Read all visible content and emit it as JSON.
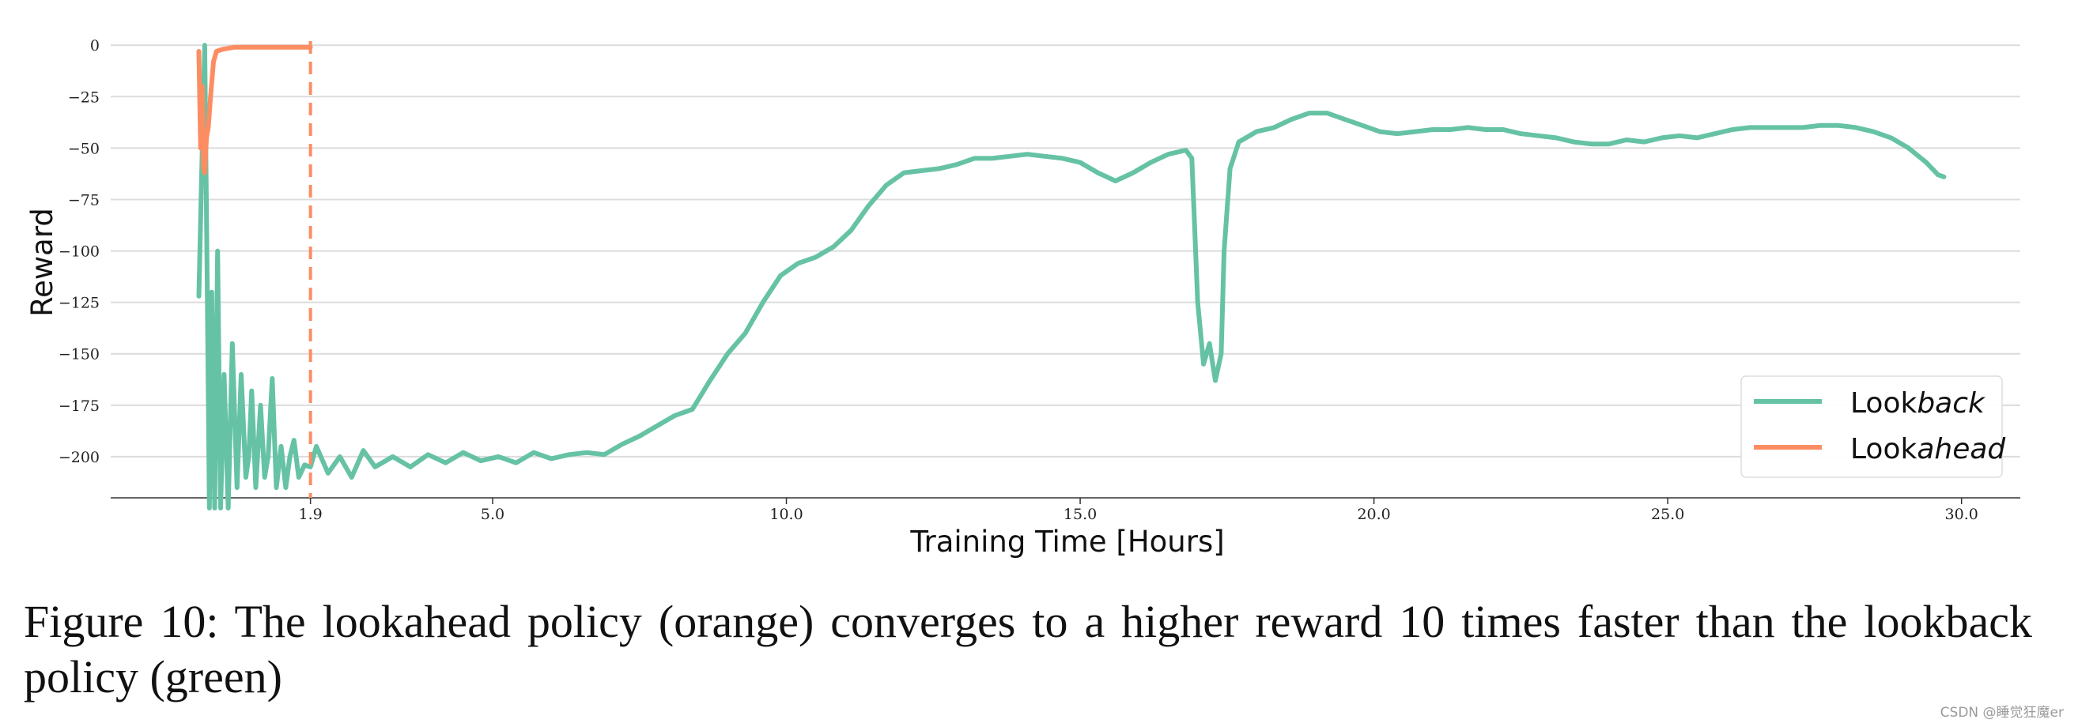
{
  "chart_data": {
    "type": "line",
    "xlabel": "Training Time [Hours]",
    "ylabel": "Reward",
    "xlim": [
      -1.5,
      31.0
    ],
    "ylim": [
      -220,
      2
    ],
    "x_ticks": [
      {
        "value": 1.9,
        "label": "1.9"
      },
      {
        "value": 5.0,
        "label": "5.0"
      },
      {
        "value": 10.0,
        "label": "10.0"
      },
      {
        "value": 15.0,
        "label": "15.0"
      },
      {
        "value": 20.0,
        "label": "20.0"
      },
      {
        "value": 25.0,
        "label": "25.0"
      },
      {
        "value": 30.0,
        "label": "30.0"
      }
    ],
    "y_ticks": [
      {
        "value": 0,
        "label": "0"
      },
      {
        "value": -25,
        "label": "−25"
      },
      {
        "value": -50,
        "label": "−50"
      },
      {
        "value": -75,
        "label": "−75"
      },
      {
        "value": -100,
        "label": "−100"
      },
      {
        "value": -125,
        "label": "−125"
      },
      {
        "value": -150,
        "label": "−150"
      },
      {
        "value": -175,
        "label": "−175"
      },
      {
        "value": -200,
        "label": "−200"
      }
    ],
    "grid": "horizontal",
    "legend_position": "bottom-right",
    "vline": {
      "x": 1.9,
      "color": "#fc8d62",
      "style": "dashed"
    },
    "series": [
      {
        "name_plain": "Look",
        "name_italic": "back",
        "color": "#66c2a5",
        "points": [
          [
            0.0,
            -122
          ],
          [
            0.05,
            -60
          ],
          [
            0.1,
            0
          ],
          [
            0.14,
            -110
          ],
          [
            0.18,
            -225
          ],
          [
            0.22,
            -120
          ],
          [
            0.27,
            -225
          ],
          [
            0.32,
            -100
          ],
          [
            0.37,
            -225
          ],
          [
            0.43,
            -160
          ],
          [
            0.5,
            -225
          ],
          [
            0.57,
            -145
          ],
          [
            0.65,
            -215
          ],
          [
            0.72,
            -160
          ],
          [
            0.8,
            -210
          ],
          [
            0.85,
            -200
          ],
          [
            0.9,
            -168
          ],
          [
            0.97,
            -215
          ],
          [
            1.05,
            -175
          ],
          [
            1.12,
            -210
          ],
          [
            1.18,
            -200
          ],
          [
            1.25,
            -162
          ],
          [
            1.32,
            -215
          ],
          [
            1.4,
            -195
          ],
          [
            1.48,
            -215
          ],
          [
            1.55,
            -200
          ],
          [
            1.62,
            -192
          ],
          [
            1.7,
            -210
          ],
          [
            1.8,
            -204
          ],
          [
            1.9,
            -205
          ],
          [
            2.0,
            -195
          ],
          [
            2.2,
            -208
          ],
          [
            2.4,
            -200
          ],
          [
            2.6,
            -210
          ],
          [
            2.8,
            -197
          ],
          [
            3.0,
            -205
          ],
          [
            3.3,
            -200
          ],
          [
            3.6,
            -205
          ],
          [
            3.9,
            -199
          ],
          [
            4.2,
            -203
          ],
          [
            4.5,
            -198
          ],
          [
            4.8,
            -202
          ],
          [
            5.1,
            -200
          ],
          [
            5.4,
            -203
          ],
          [
            5.7,
            -198
          ],
          [
            6.0,
            -201
          ],
          [
            6.3,
            -199
          ],
          [
            6.6,
            -198
          ],
          [
            6.9,
            -199
          ],
          [
            7.2,
            -194
          ],
          [
            7.5,
            -190
          ],
          [
            7.8,
            -185
          ],
          [
            8.1,
            -180
          ],
          [
            8.4,
            -177
          ],
          [
            8.7,
            -163
          ],
          [
            9.0,
            -150
          ],
          [
            9.3,
            -140
          ],
          [
            9.6,
            -125
          ],
          [
            9.9,
            -112
          ],
          [
            10.2,
            -106
          ],
          [
            10.5,
            -103
          ],
          [
            10.8,
            -98
          ],
          [
            11.1,
            -90
          ],
          [
            11.4,
            -78
          ],
          [
            11.7,
            -68
          ],
          [
            12.0,
            -62
          ],
          [
            12.3,
            -61
          ],
          [
            12.6,
            -60
          ],
          [
            12.9,
            -58
          ],
          [
            13.2,
            -55
          ],
          [
            13.5,
            -55
          ],
          [
            13.8,
            -54
          ],
          [
            14.1,
            -53
          ],
          [
            14.4,
            -54
          ],
          [
            14.7,
            -55
          ],
          [
            15.0,
            -57
          ],
          [
            15.3,
            -62
          ],
          [
            15.6,
            -66
          ],
          [
            15.9,
            -62
          ],
          [
            16.2,
            -57
          ],
          [
            16.5,
            -53
          ],
          [
            16.8,
            -51
          ],
          [
            16.9,
            -55
          ],
          [
            17.0,
            -125
          ],
          [
            17.1,
            -155
          ],
          [
            17.2,
            -145
          ],
          [
            17.3,
            -163
          ],
          [
            17.4,
            -150
          ],
          [
            17.45,
            -100
          ],
          [
            17.55,
            -60
          ],
          [
            17.7,
            -47
          ],
          [
            18.0,
            -42
          ],
          [
            18.3,
            -40
          ],
          [
            18.6,
            -36
          ],
          [
            18.9,
            -33
          ],
          [
            19.2,
            -33
          ],
          [
            19.5,
            -36
          ],
          [
            19.8,
            -39
          ],
          [
            20.1,
            -42
          ],
          [
            20.4,
            -43
          ],
          [
            20.7,
            -42
          ],
          [
            21.0,
            -41
          ],
          [
            21.3,
            -41
          ],
          [
            21.6,
            -40
          ],
          [
            21.9,
            -41
          ],
          [
            22.2,
            -41
          ],
          [
            22.5,
            -43
          ],
          [
            22.8,
            -44
          ],
          [
            23.1,
            -45
          ],
          [
            23.4,
            -47
          ],
          [
            23.7,
            -48
          ],
          [
            24.0,
            -48
          ],
          [
            24.3,
            -46
          ],
          [
            24.6,
            -47
          ],
          [
            24.9,
            -45
          ],
          [
            25.2,
            -44
          ],
          [
            25.5,
            -45
          ],
          [
            25.8,
            -43
          ],
          [
            26.1,
            -41
          ],
          [
            26.4,
            -40
          ],
          [
            26.7,
            -40
          ],
          [
            27.0,
            -40
          ],
          [
            27.3,
            -40
          ],
          [
            27.6,
            -39
          ],
          [
            27.9,
            -39
          ],
          [
            28.2,
            -40
          ],
          [
            28.5,
            -42
          ],
          [
            28.8,
            -45
          ],
          [
            29.1,
            -50
          ],
          [
            29.4,
            -57
          ],
          [
            29.6,
            -63
          ],
          [
            29.7,
            -64
          ]
        ]
      },
      {
        "name_plain": "Look",
        "name_italic": "ahead",
        "color": "#fc8d62",
        "points": [
          [
            0.0,
            -3
          ],
          [
            0.03,
            -50
          ],
          [
            0.06,
            -20
          ],
          [
            0.08,
            -60
          ],
          [
            0.1,
            -62
          ],
          [
            0.13,
            -45
          ],
          [
            0.16,
            -40
          ],
          [
            0.2,
            -25
          ],
          [
            0.25,
            -8
          ],
          [
            0.3,
            -3
          ],
          [
            0.4,
            -2
          ],
          [
            0.6,
            -1
          ],
          [
            0.9,
            -1
          ],
          [
            1.2,
            -1
          ],
          [
            1.5,
            -1
          ],
          [
            1.9,
            -1
          ]
        ]
      }
    ]
  },
  "caption": {
    "text": "Figure 10: The lookahead policy (orange) converges to a higher reward 10 times faster than the lookback policy (green)"
  },
  "watermark": "CSDN @睡觉狂魔er"
}
